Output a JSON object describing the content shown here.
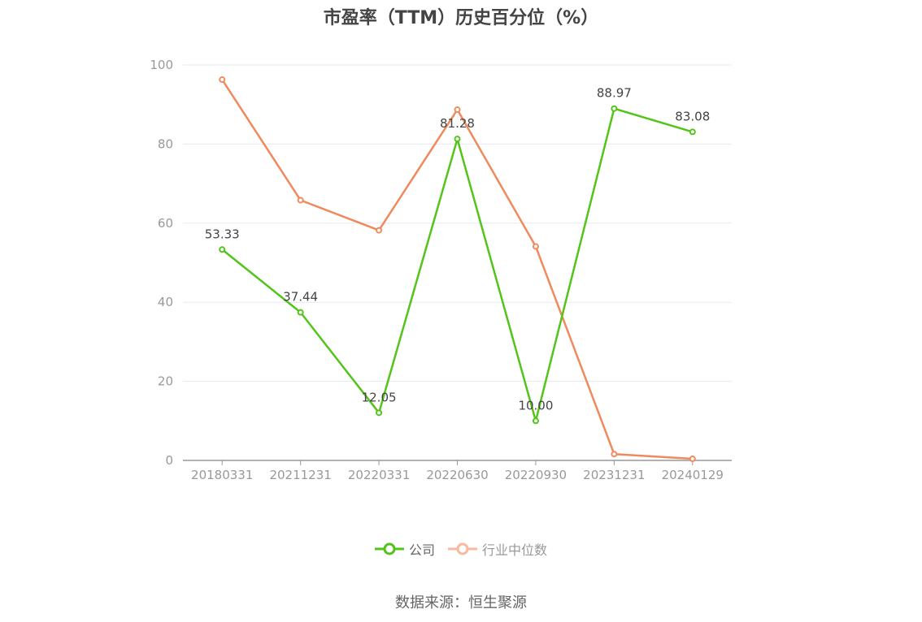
{
  "title": "市盈率（TTM）历史百分位（%）",
  "source": "数据来源：恒生聚源",
  "chart_data": {
    "type": "line",
    "categories": [
      "20180331",
      "20211231",
      "20220331",
      "20220630",
      "20220930",
      "20231231",
      "20240129"
    ],
    "series": [
      {
        "name": "公司",
        "color": "#52c41a",
        "values": [
          53.33,
          37.44,
          12.05,
          81.28,
          10.0,
          88.97,
          83.08
        ],
        "labels": [
          "53.33",
          "37.44",
          "12.05",
          "81.28",
          "10.00",
          "88.97",
          "83.08"
        ]
      },
      {
        "name": "行业中位数",
        "color": "#f08a5d",
        "values": [
          96.3,
          65.8,
          58.2,
          88.7,
          54.1,
          1.6,
          0.4
        ]
      }
    ],
    "ylim": [
      0,
      100
    ],
    "yticks": [
      "0",
      "20",
      "40",
      "60",
      "80",
      "100"
    ],
    "grid": true,
    "legend_position": "bottom"
  },
  "legend": {
    "items": [
      {
        "label": "公司",
        "color": "#52c41a",
        "active": true
      },
      {
        "label": "行业中位数",
        "color": "#f7b9a0",
        "active": false
      }
    ]
  }
}
